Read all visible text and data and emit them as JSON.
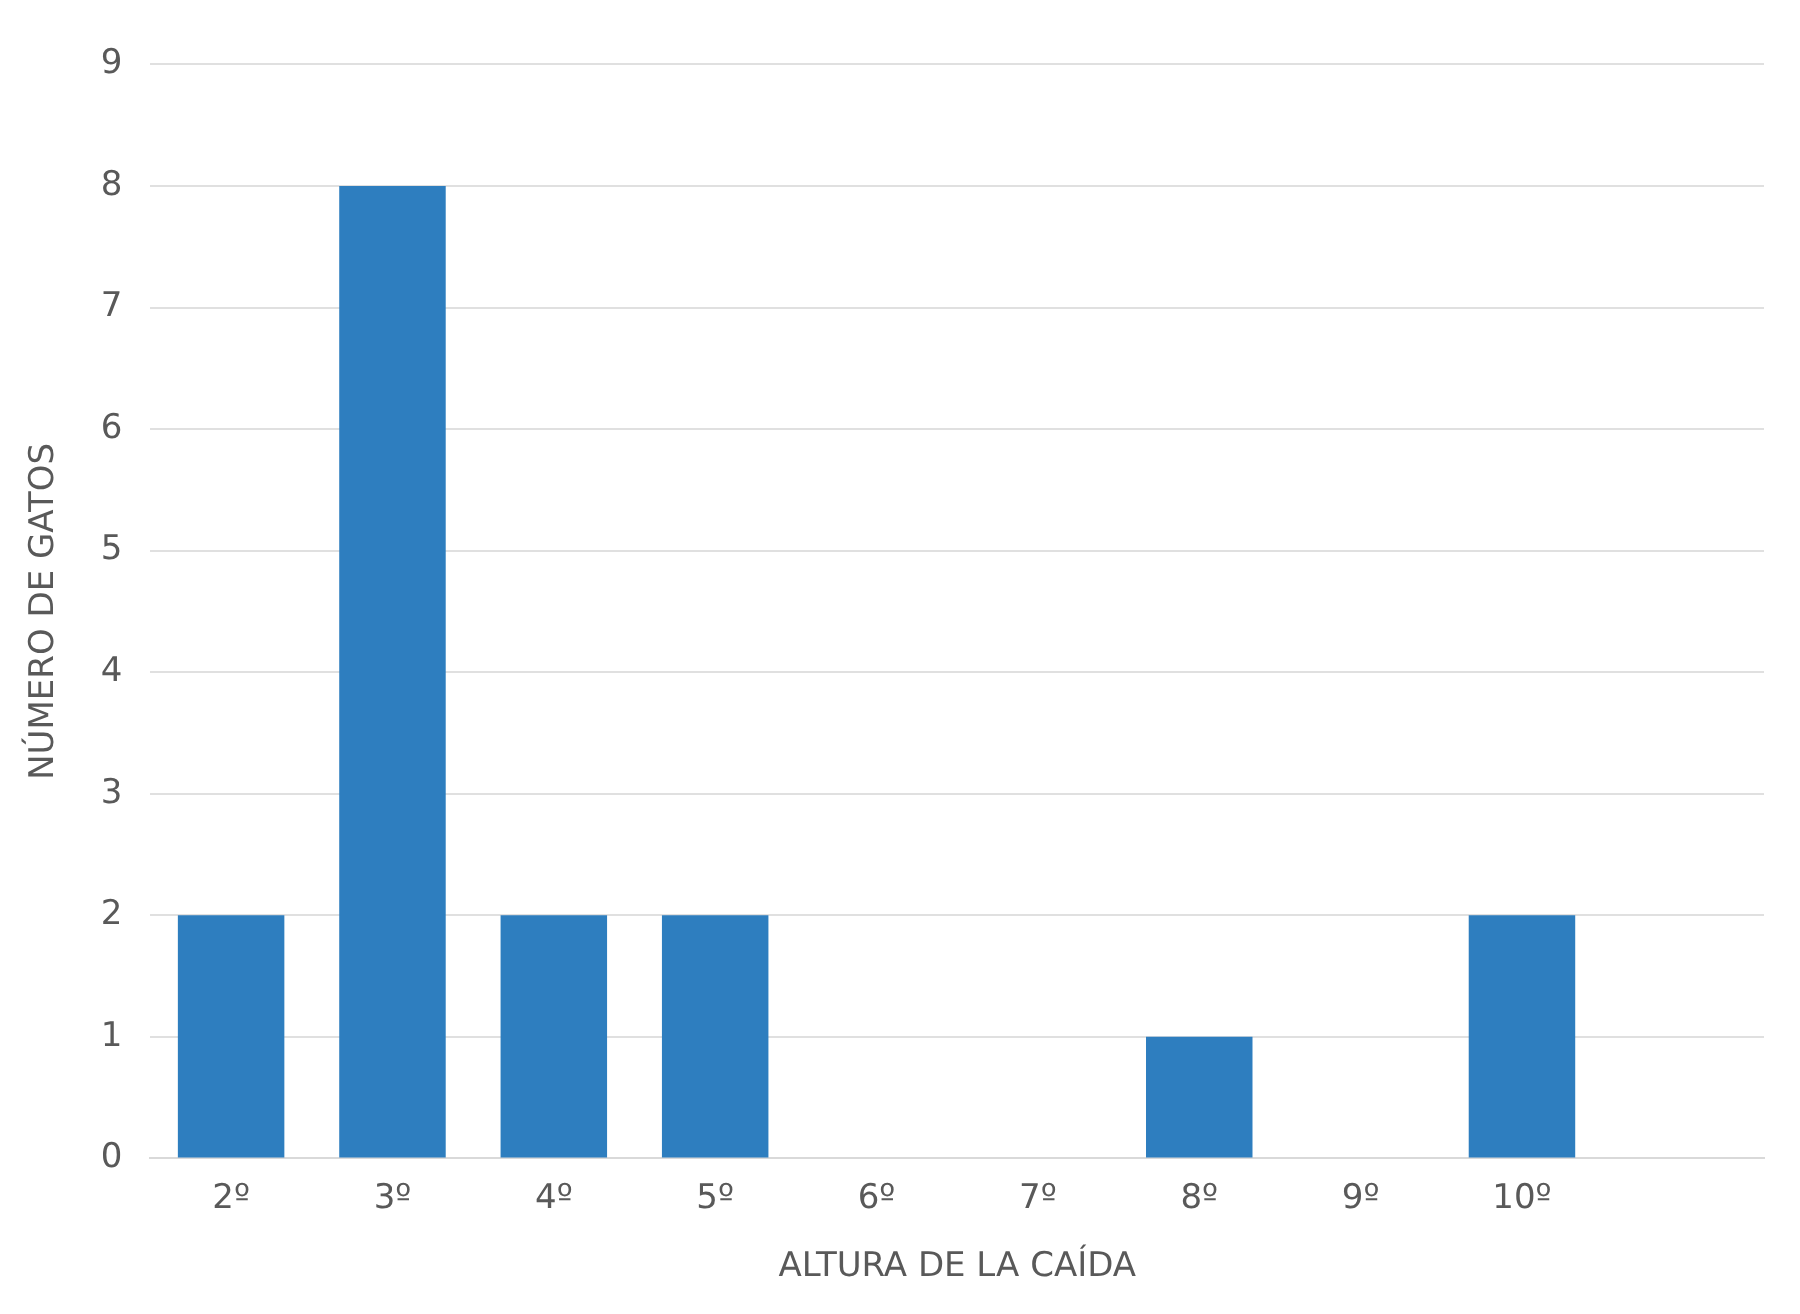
{
  "chart_data": {
    "type": "bar",
    "xlabel": "ALTURA DE LA CAÍDA",
    "ylabel": "NÚMERO DE GATOS",
    "categories": [
      "2º",
      "3º",
      "4º",
      "5º",
      "6º",
      "7º",
      "8º",
      "9º",
      "10º",
      null
    ],
    "values": [
      2,
      8,
      2,
      2,
      0,
      0,
      1,
      0,
      2,
      null
    ],
    "color": "#2e7ebf",
    "ylim": [
      0,
      9
    ],
    "yticks": [
      0,
      1,
      2,
      3,
      4,
      5,
      6,
      7,
      8,
      9
    ],
    "grid": "y",
    "legend": false
  }
}
